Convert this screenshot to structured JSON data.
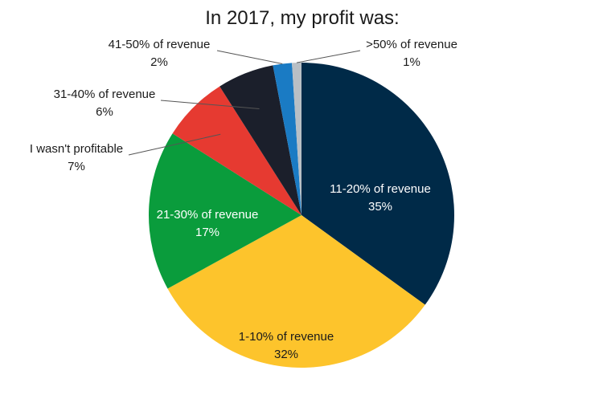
{
  "chart_data": {
    "type": "pie",
    "title": "In 2017, my profit was:",
    "slices": [
      {
        "label": "11-20% of revenue",
        "value": 35,
        "value_label": "35%",
        "color": "#002a48"
      },
      {
        "label": "1-10% of revenue",
        "value": 32,
        "value_label": "32%",
        "color": "#fdc42c"
      },
      {
        "label": "21-30% of revenue",
        "value": 17,
        "value_label": "17%",
        "color": "#0a9c3c"
      },
      {
        "label": "I wasn't profitable",
        "value": 7,
        "value_label": "7%",
        "color": "#e63a31"
      },
      {
        "label": "31-40% of revenue",
        "value": 6,
        "value_label": "6%",
        "color": "#1b1f2b"
      },
      {
        "label": "41-50% of revenue",
        "value": 2,
        "value_label": "2%",
        "color": "#1a7bc4"
      },
      {
        "label": ">50% of revenue",
        "value": 1,
        "value_label": "1%",
        "color": "#b8bfc5"
      }
    ]
  }
}
